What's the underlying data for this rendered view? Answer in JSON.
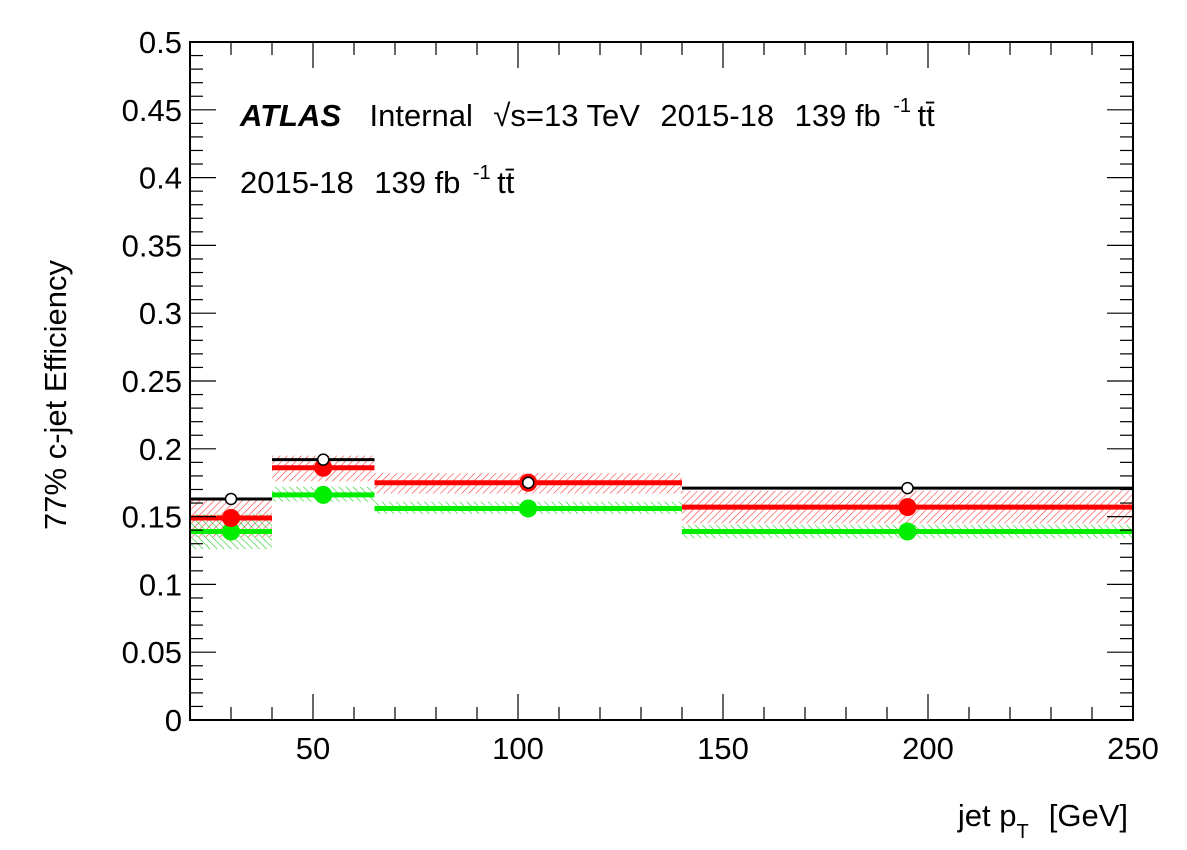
{
  "chart_data": {
    "type": "scatter",
    "title": "",
    "xlabel": {
      "main": "jet p",
      "sub": "T",
      "unit": "[GeV]"
    },
    "ylabel": "77% c-jet Efficiency",
    "xlim": [
      20,
      250
    ],
    "ylim": [
      0,
      0.5
    ],
    "grid": false,
    "x_ticks": [
      50,
      100,
      150,
      200,
      250
    ],
    "x_tick_labels": [
      "50",
      "100",
      "150",
      "200",
      "250"
    ],
    "y_ticks": [
      0,
      0.05,
      0.1,
      0.15,
      0.2,
      0.25,
      0.3,
      0.35,
      0.4,
      0.45,
      0.5
    ],
    "y_tick_labels": [
      "0",
      "0.05",
      "0.1",
      "0.15",
      "0.2",
      "0.25",
      "0.3",
      "0.35",
      "0.4",
      "0.45",
      "0.5"
    ],
    "annotations": {
      "atlas": "ATLAS",
      "status": "Internal",
      "energy_sqrt": "√s",
      "energy": "=13 TeV",
      "period": "2015-18",
      "lumi": "139 fb",
      "lumi_exp": "-1",
      "process": "tt̄"
    },
    "bin_edges": [
      20,
      40,
      65,
      140,
      250
    ],
    "bin_centers": [
      30,
      52.5,
      102.5,
      195
    ],
    "series": [
      {
        "style": "black-line-open-marker",
        "color": "#000000",
        "values": [
          0.163,
          0.192,
          0.175,
          0.171
        ],
        "band": null
      },
      {
        "style": "red-line-band",
        "color": "#ff0000",
        "values": [
          0.149,
          0.186,
          0.175,
          0.157
        ],
        "band": [
          [
            0.135,
            0.163
          ],
          [
            0.176,
            0.195
          ],
          [
            0.167,
            0.182
          ],
          [
            0.145,
            0.169
          ]
        ]
      },
      {
        "style": "green-line-band",
        "color": "#00ee00",
        "values": [
          0.139,
          0.166,
          0.156,
          0.139
        ],
        "band": [
          [
            0.126,
            0.152
          ],
          [
            0.161,
            0.172
          ],
          [
            0.152,
            0.161
          ],
          [
            0.134,
            0.144
          ]
        ]
      }
    ]
  }
}
